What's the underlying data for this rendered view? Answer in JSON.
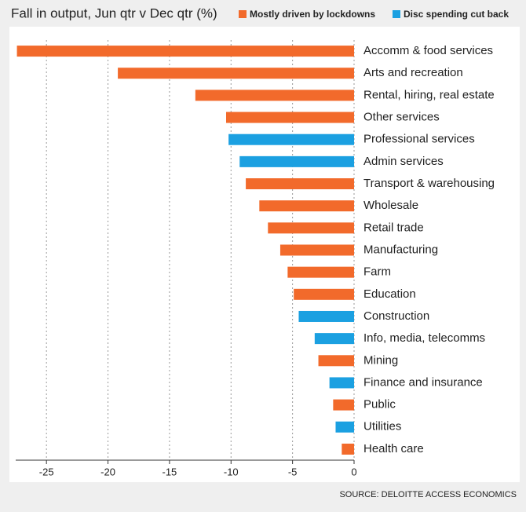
{
  "chart_data": {
    "type": "barh",
    "title": "Fall in output, Jun qtr v Dec qtr (%)",
    "source": "SOURCE: DELOITTE ACCESS ECONOMICS",
    "categories": [
      "Accomm & food services",
      "Arts and recreation",
      "Rental, hiring, real estate",
      "Other services",
      "Professional services",
      "Admin services",
      "Transport & warehousing",
      "Wholesale",
      "Retail trade",
      "Manufacturing",
      "Farm",
      "Education",
      "Construction",
      "Info, media, telecomms",
      "Mining",
      "Finance and insurance",
      "Public",
      "Utilities",
      "Health care"
    ],
    "series": [
      {
        "name": "Mostly driven by lockdowns",
        "color": "#f26a2b",
        "values": [
          -27.4,
          -19.2,
          -12.9,
          -10.4,
          null,
          null,
          -8.8,
          -7.7,
          -7.0,
          -6.0,
          -5.4,
          -4.9,
          null,
          null,
          -2.9,
          null,
          -1.7,
          null,
          -1.0
        ]
      },
      {
        "name": "Disc spending cut back",
        "color": "#1ba0e1",
        "values": [
          null,
          null,
          null,
          null,
          -10.2,
          -9.3,
          null,
          null,
          null,
          null,
          null,
          null,
          -4.5,
          -3.2,
          null,
          -2.0,
          null,
          -1.5,
          null
        ]
      }
    ],
    "xlim": [
      -27.5,
      0
    ],
    "xticks": [
      -25,
      -20,
      -15,
      -10,
      -5,
      0
    ],
    "grid": true
  }
}
